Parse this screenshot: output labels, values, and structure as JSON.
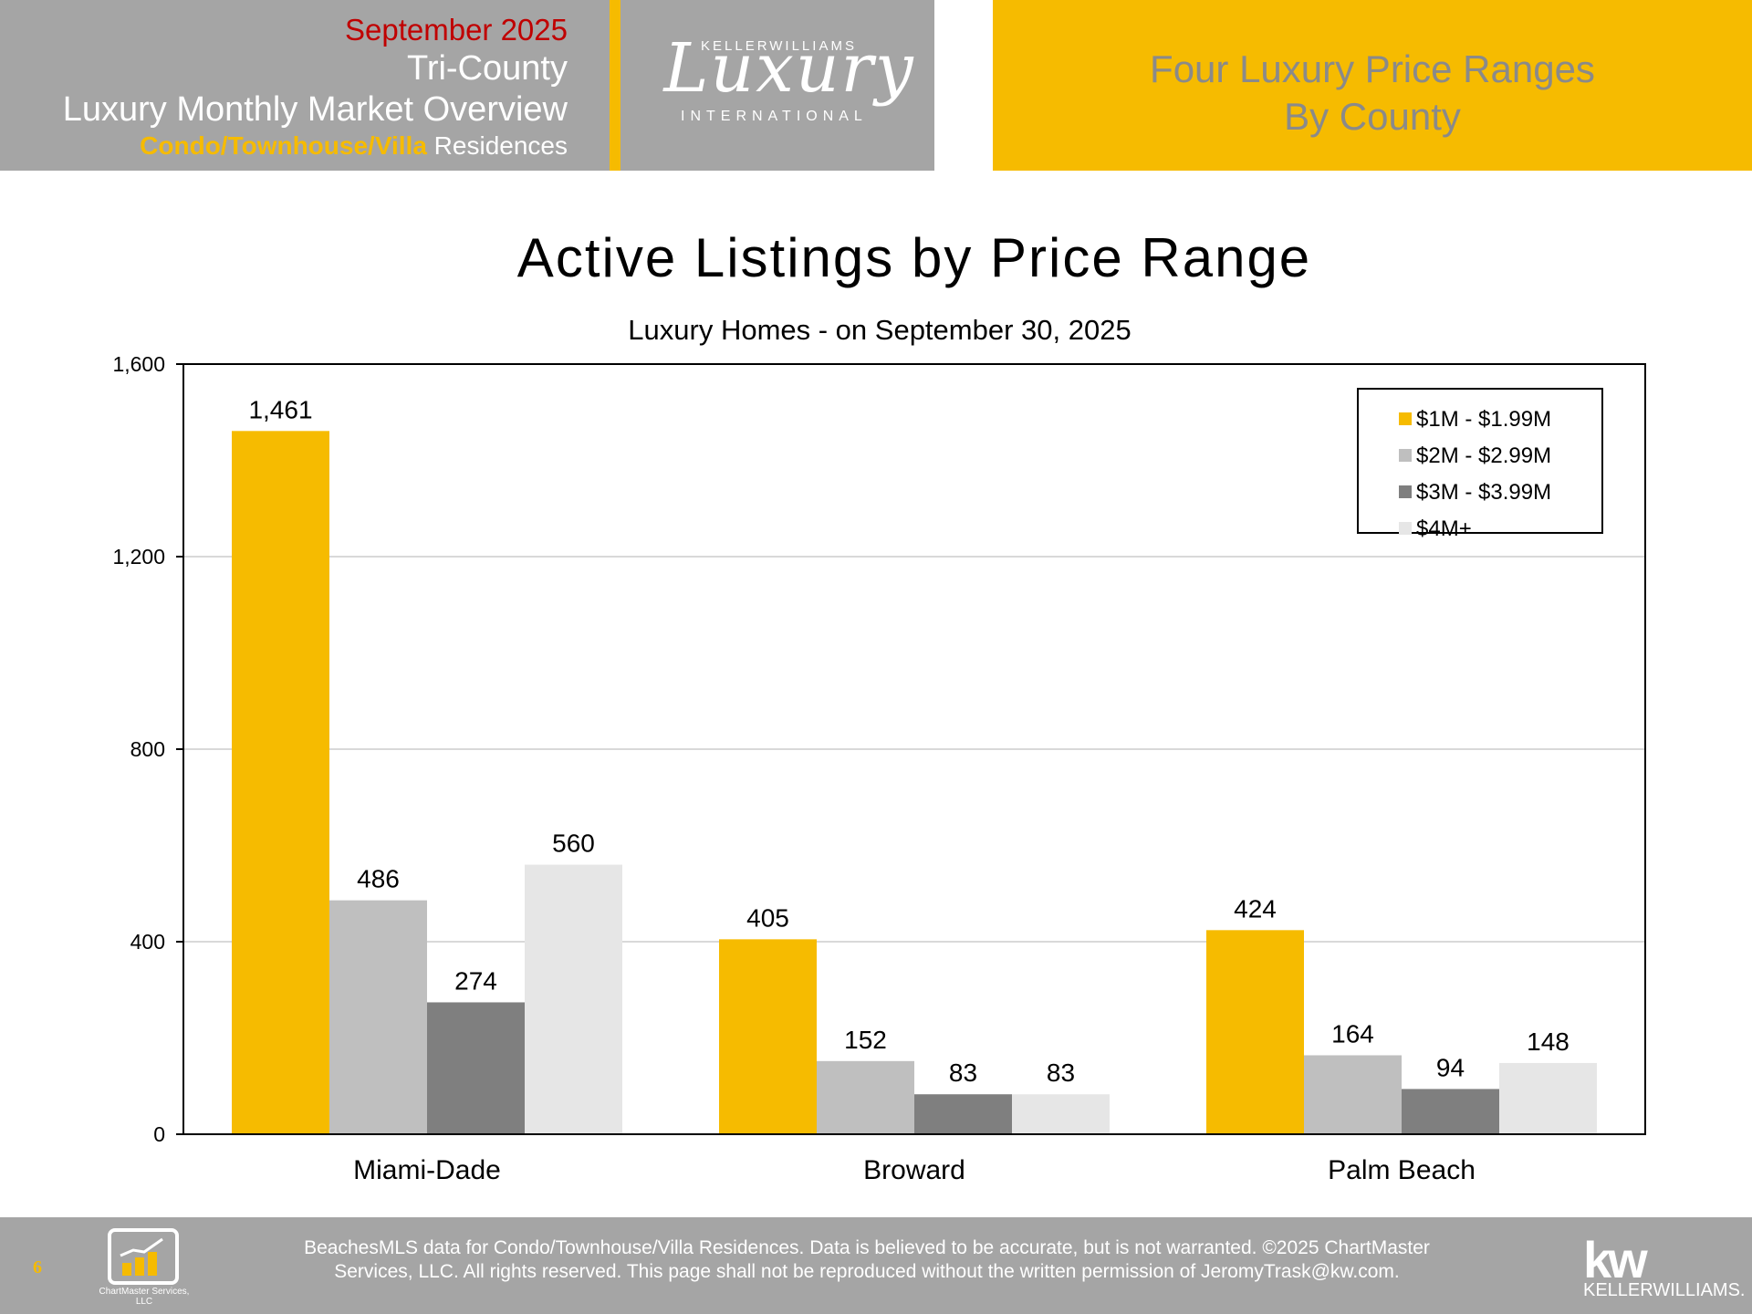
{
  "header": {
    "month": "September 2025",
    "region": "Tri-County",
    "report": "Luxury Monthly Market Overview",
    "type_highlight": "Condo/Townhouse/Villa",
    "type_rest": " Residences",
    "logo_top": "KELLERWILLIAMS",
    "logo_main": "Luxury",
    "logo_bottom": "INTERNATIONAL",
    "right_line1": "Four Luxury Price Ranges",
    "right_line2": "By County"
  },
  "colors": {
    "gold": "#f6bb00",
    "gray_header": "#a5a5a5",
    "red": "#c00000"
  },
  "chart_data": {
    "type": "bar",
    "title": "Active Listings by Price Range",
    "subtitle": "Luxury Homes - on September 30, 2025",
    "categories": [
      "Miami-Dade",
      "Broward",
      "Palm Beach"
    ],
    "series": [
      {
        "name": "$1M - $1.99M",
        "color": "#f6bb00",
        "values": [
          1461,
          405,
          424
        ],
        "labels": [
          "1,461",
          "405",
          "424"
        ]
      },
      {
        "name": "$2M - $2.99M",
        "color": "#bfbfbf",
        "values": [
          486,
          152,
          164
        ],
        "labels": [
          "486",
          "152",
          "164"
        ]
      },
      {
        "name": "$3M - $3.99M",
        "color": "#7f7f7f",
        "values": [
          274,
          83,
          94
        ],
        "labels": [
          "274",
          "83",
          "94"
        ]
      },
      {
        "name": "$4M+",
        "color": "#e6e6e6",
        "values": [
          560,
          83,
          148
        ],
        "labels": [
          "560",
          "83",
          "148"
        ]
      }
    ],
    "ylim": [
      0,
      1600
    ],
    "yticks": [
      0,
      400,
      800,
      1200,
      1600
    ],
    "ytick_labels": [
      "0",
      "400",
      "800",
      "1,200",
      "1,600"
    ],
    "grid": true,
    "legend_position": "top-right"
  },
  "footer": {
    "page": "6",
    "chartmaster_label": "ChartMaster Services, LLC",
    "disclaimer_line1": "BeachesMLS data for Condo/Townhouse/Villa Residences.  Data is believed to be accurate, but is not warranted.   ©2025  ChartMaster",
    "disclaimer_line2": "Services, LLC.  All rights reserved. This page shall not be reproduced without the written permission of JeromyTrask@kw.com.",
    "kw_logo": "kw",
    "kw_word": "KELLERWILLIAMS."
  }
}
